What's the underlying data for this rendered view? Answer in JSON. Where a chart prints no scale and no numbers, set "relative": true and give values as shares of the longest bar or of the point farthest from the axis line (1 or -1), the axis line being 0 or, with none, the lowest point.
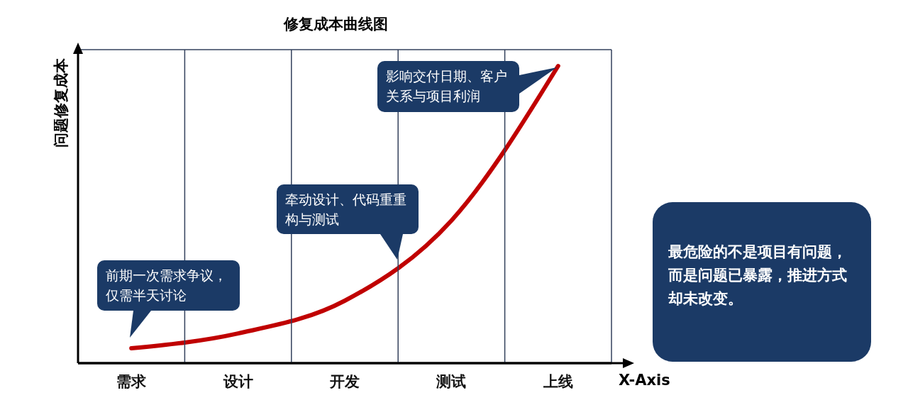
{
  "chart_data": {
    "type": "line",
    "title": "修复成本曲线图",
    "xlabel": "X-Axis",
    "ylabel": "问题修复成本",
    "categories": [
      "需求",
      "设计",
      "开发",
      "测试",
      "上线"
    ],
    "relative": true,
    "series": [
      {
        "color": "#c00000",
        "values": [
          0.05,
          0.1,
          0.21,
          0.48,
          1
        ]
      }
    ],
    "marker": "none",
    "line_style": "solid",
    "annotations": [
      "前期一次需求争议，仅需半天讨论",
      "牵动设计、代码重重构与测试",
      "影响交付日期、客户关系与项目利润",
      "最危险的不是项目有问题，而是问题已暴露，推进方式却未改变。"
    ]
  }
}
